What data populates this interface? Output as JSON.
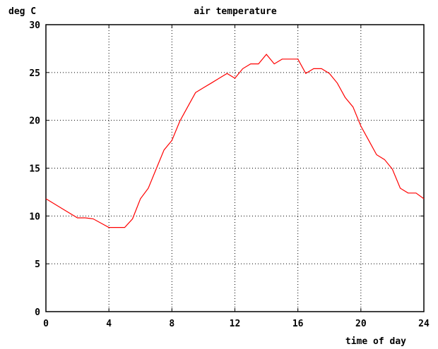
{
  "chart_data": {
    "type": "line",
    "title": "air temperature",
    "ylabel": "deg C",
    "xlabel": "time of day",
    "xlim": [
      0,
      24
    ],
    "ylim": [
      0,
      30
    ],
    "xticks": [
      0,
      4,
      8,
      12,
      16,
      20,
      24
    ],
    "yticks": [
      0,
      5,
      10,
      15,
      20,
      25,
      30
    ],
    "grid": true,
    "series": [
      {
        "color": "#ff0000",
        "x": [
          0,
          1,
          2,
          2.5,
          3,
          4,
          4.5,
          5,
          5.5,
          6,
          6.5,
          7,
          7.5,
          8,
          8.5,
          9,
          9.5,
          10,
          10.5,
          11,
          11.5,
          12,
          12.5,
          13,
          13.5,
          14,
          14.5,
          15,
          15.5,
          16,
          16.5,
          17,
          17.5,
          18,
          18.5,
          19,
          19.5,
          20,
          20.5,
          21,
          21.5,
          22,
          22.5,
          23,
          23.5,
          24
        ],
        "y": [
          11.8,
          10.8,
          9.8,
          9.8,
          9.7,
          8.8,
          8.8,
          8.8,
          9.7,
          11.8,
          12.9,
          14.9,
          16.9,
          17.9,
          19.9,
          21.4,
          22.9,
          23.4,
          23.9,
          24.4,
          24.9,
          24.4,
          25.4,
          25.9,
          25.9,
          26.9,
          25.9,
          26.4,
          26.4,
          26.4,
          24.9,
          25.4,
          25.4,
          24.9,
          23.9,
          22.4,
          21.4,
          19.4,
          17.9,
          16.4,
          15.9,
          14.9,
          12.9,
          12.4,
          12.4,
          11.8
        ]
      }
    ]
  }
}
